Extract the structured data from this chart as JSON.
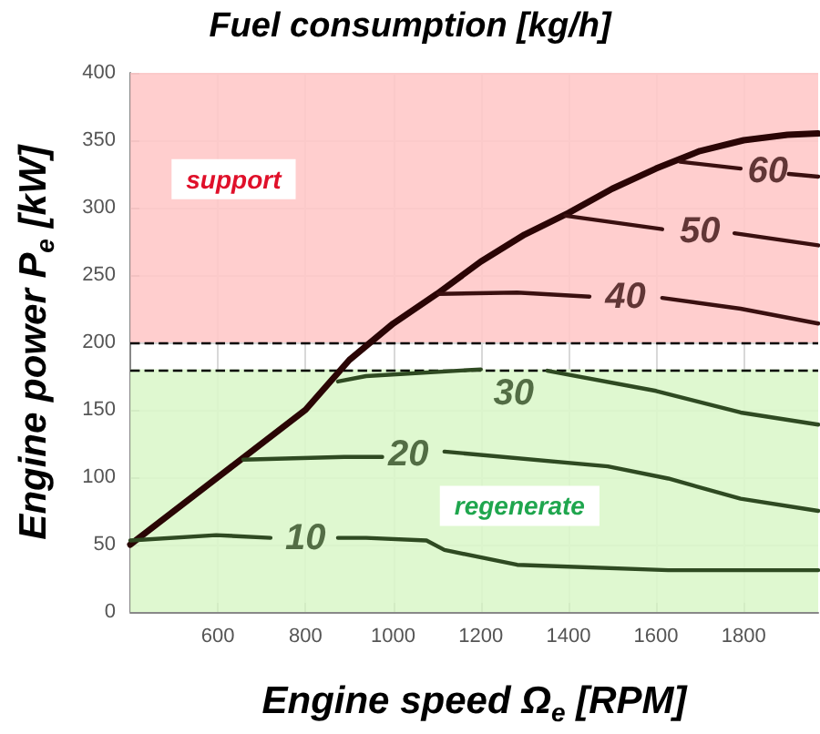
{
  "chart_data": {
    "type": "line",
    "title": "Fuel consumption [kg/h]",
    "xlabel": "Engine speed Ω$_{e}$ [RPM]",
    "ylabel": "Engine power P$_{e}$ [kW]",
    "xlim": [
      400,
      1970
    ],
    "xticks": [
      600,
      800,
      1000,
      1200,
      1400,
      1600,
      1800
    ],
    "ylim": [
      0,
      400
    ],
    "yticks": [
      0,
      50,
      100,
      150,
      200,
      250,
      300,
      350,
      400
    ],
    "grid": true,
    "marker": "none",
    "line_style": "solid",
    "series": [
      {
        "color": "#2a0505",
        "x": [
          400,
          600,
          800,
          900,
          1000,
          1100,
          1200,
          1300,
          1400,
          1500,
          1600,
          1700,
          1800,
          1900,
          1970
        ],
        "values": [
          50,
          100,
          150,
          187,
          214,
          236,
          260,
          280,
          296,
          314,
          329,
          342,
          350,
          354,
          355
        ]
      },
      {
        "name": "10",
        "color": "#2f4a22",
        "x": [
          400,
          596,
          720,
          740,
          860,
          874,
          938,
          1076,
          1117,
          1283,
          1628,
          1970
        ],
        "values": [
          53,
          57,
          55,
          null,
          null,
          55,
          55,
          53,
          46,
          35,
          31,
          31
        ]
      },
      {
        "name": "20",
        "color": "#2f4a22",
        "x": [
          658,
          888,
          975,
          990,
          1080,
          1117,
          1490,
          1628,
          1793,
          1970
        ],
        "values": [
          113,
          115,
          115,
          null,
          null,
          119,
          108,
          99,
          84,
          75
        ]
      },
      {
        "name": "30",
        "color": "#2f4a22",
        "x": [
          874,
          938,
          1200,
          1230,
          1320,
          1352,
          1600,
          1793,
          1970
        ],
        "values": [
          171,
          175,
          180,
          null,
          null,
          179,
          164,
          148,
          139
        ]
      },
      {
        "name": "40",
        "color": "#3a1010",
        "x": [
          1103,
          1283,
          1448,
          1480,
          1580,
          1614,
          1793,
          1970
        ],
        "values": [
          236,
          237,
          234,
          null,
          null,
          233,
          225,
          214
        ]
      },
      {
        "name": "50",
        "color": "#3a1010",
        "x": [
          1393,
          1614,
          1640,
          1760,
          1779,
          1970
        ],
        "values": [
          294,
          284,
          null,
          null,
          281,
          272
        ]
      },
      {
        "name": "60",
        "color": "#3a1010",
        "x": [
          1655,
          1793,
          1820,
          1890,
          1903,
          1970
        ],
        "values": [
          334,
          329,
          null,
          null,
          325,
          323
        ]
      }
    ],
    "ref_lines": [
      {
        "axis": "y",
        "value": 200,
        "color": "#000000",
        "line_style": "dashed"
      },
      {
        "axis": "y",
        "value": 180,
        "color": "#000000",
        "line_style": "dashed"
      }
    ],
    "bands": [
      {
        "axis": "y",
        "from": 200,
        "to": 400,
        "label": "support",
        "color": "#ffc9c9"
      },
      {
        "axis": "y",
        "from": 0,
        "to": 180,
        "label": "regenerate",
        "color": "#dcf7cb"
      }
    ]
  }
}
